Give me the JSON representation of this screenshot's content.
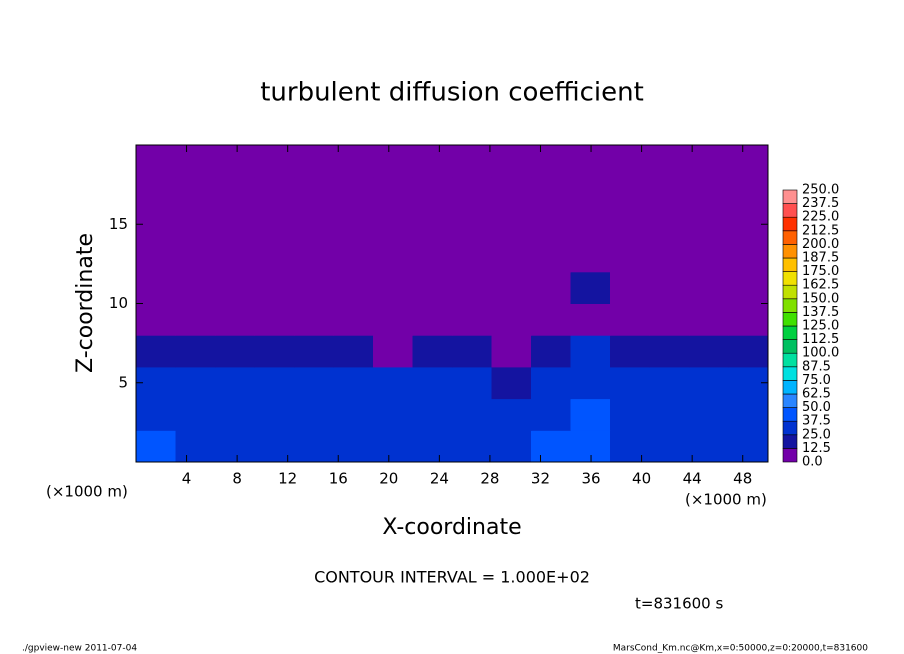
{
  "chart_data": {
    "type": "heatmap",
    "title": "turbulent diffusion coefficient",
    "x_label": "X-coordinate",
    "y_label": "Z-coordinate",
    "x_unit": "(×1000 m)",
    "x_unit_right": "(×1000 m)",
    "contour_note": "CONTOUR INTERVAL = 1.000E+02",
    "time_note": "t=831600 s",
    "footer_left": "./gpview-new  2011-07-04",
    "footer_right": "MarsCond_Km.nc@Km,x=0:50000,z=0:20000,t=831600",
    "xlim": [
      0,
      50
    ],
    "ylim": [
      0,
      20
    ],
    "xticks": [
      4,
      8,
      12,
      16,
      20,
      24,
      28,
      32,
      36,
      40,
      44,
      48
    ],
    "yticks": [
      5,
      10,
      15
    ],
    "values": [
      [
        40,
        30,
        35,
        30,
        35,
        30,
        30,
        30,
        25,
        30,
        40,
        45,
        35,
        30,
        25,
        30
      ],
      [
        30,
        30,
        35,
        35,
        30,
        30,
        30,
        35,
        30,
        25,
        30,
        40,
        35,
        30,
        30,
        25
      ],
      [
        25,
        25,
        35,
        30,
        30,
        25,
        25,
        30,
        25,
        20,
        25,
        30,
        25,
        25,
        25,
        30
      ],
      [
        20,
        20,
        20,
        15,
        15,
        15,
        5,
        15,
        15,
        5,
        20,
        25,
        20,
        15,
        15,
        20
      ],
      [
        0,
        0,
        0,
        0,
        0,
        0,
        0,
        0,
        0,
        0,
        5,
        10,
        5,
        0,
        0,
        0
      ],
      [
        5,
        0,
        5,
        0,
        0,
        0,
        0,
        0,
        0,
        0,
        5,
        15,
        5,
        0,
        0,
        5
      ],
      [
        5,
        5,
        0,
        0,
        0,
        0,
        0,
        0,
        5,
        0,
        5,
        10,
        5,
        5,
        0,
        5
      ],
      [
        0,
        0,
        0,
        0,
        5,
        0,
        0,
        0,
        0,
        0,
        0,
        0,
        0,
        0,
        0,
        0
      ],
      [
        0,
        0,
        0,
        0,
        0,
        0,
        0,
        0,
        0,
        0,
        0,
        0,
        0,
        0,
        0,
        0
      ],
      [
        0,
        0,
        0,
        0,
        0,
        0,
        0,
        0,
        0,
        0,
        0,
        0,
        0,
        0,
        0,
        0
      ]
    ],
    "levels": [
      {
        "value": 0,
        "label": "0.0"
      },
      {
        "value": 12.5,
        "label": "12.5"
      },
      {
        "value": 25,
        "label": "25.0"
      },
      {
        "value": 37.5,
        "label": "37.5"
      },
      {
        "value": 50,
        "label": "50.0"
      },
      {
        "value": 62.5,
        "label": "62.5"
      },
      {
        "value": 75,
        "label": "75.0"
      },
      {
        "value": 87.5,
        "label": "87.5"
      },
      {
        "value": 100,
        "label": "100.0"
      },
      {
        "value": 112.5,
        "label": "112.5"
      },
      {
        "value": 125,
        "label": "125.0"
      },
      {
        "value": 137.5,
        "label": "137.5"
      },
      {
        "value": 150,
        "label": "150.0"
      },
      {
        "value": 162.5,
        "label": "162.5"
      },
      {
        "value": 175,
        "label": "175.0"
      },
      {
        "value": 187.5,
        "label": "187.5"
      },
      {
        "value": 200,
        "label": "200.0"
      },
      {
        "value": 212.5,
        "label": "212.5"
      },
      {
        "value": 225,
        "label": "225.0"
      },
      {
        "value": 237.5,
        "label": "237.5"
      },
      {
        "value": 250,
        "label": "250.0"
      }
    ],
    "level_colors": [
      "#7200a8",
      "#1414a0",
      "#0032d0",
      "#0055ff",
      "#2a85ff",
      "#00b4ff",
      "#00e0e0",
      "#00e0a0",
      "#00c060",
      "#00d040",
      "#40e000",
      "#80e000",
      "#c0e000",
      "#f0e000",
      "#ffc000",
      "#ff9000",
      "#ff6000",
      "#ff3000",
      "#ff5050",
      "#ff9090"
    ]
  }
}
